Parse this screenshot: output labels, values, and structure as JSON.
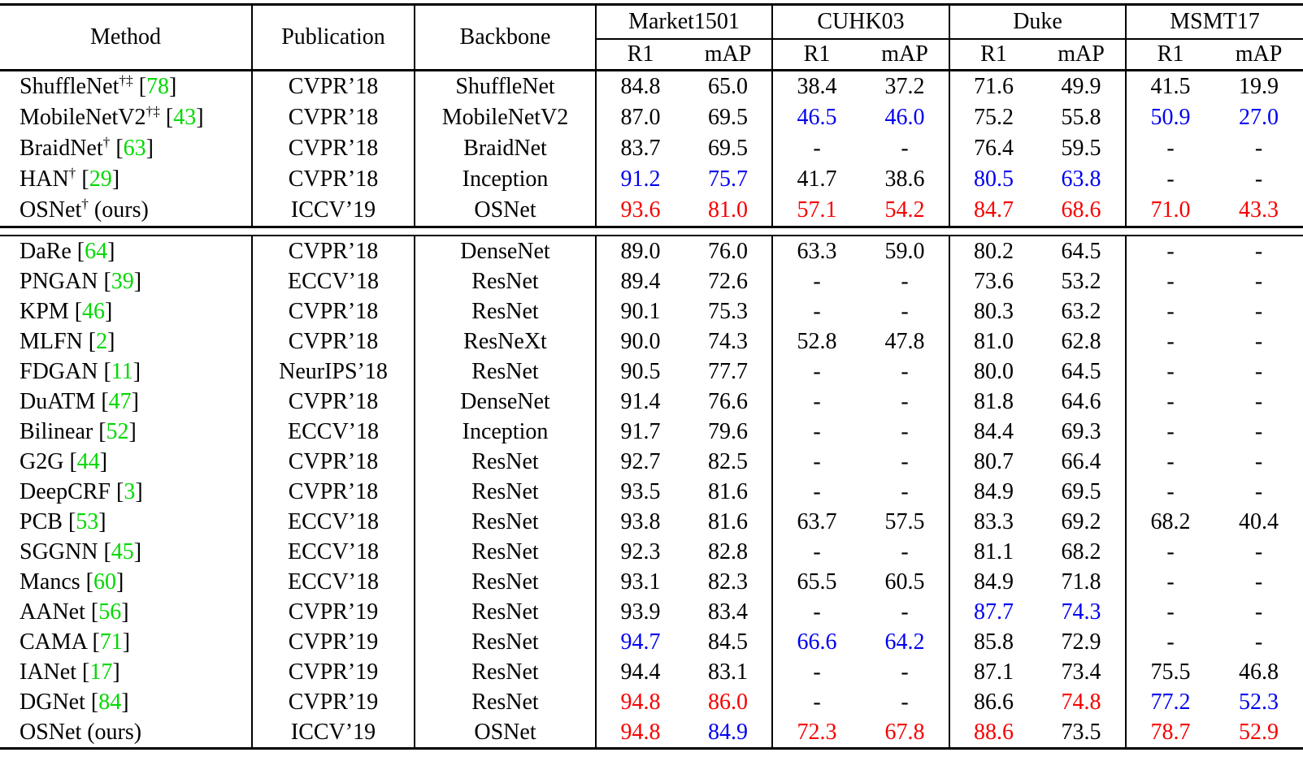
{
  "table": {
    "header": {
      "method": "Method",
      "publication": "Publication",
      "backbone": "Backbone",
      "groups": [
        "Market1501",
        "CUHK03",
        "Duke",
        "MSMT17"
      ],
      "metrics": [
        "R1",
        "mAP"
      ]
    },
    "colors": {
      "k": "#000000",
      "r": "#f70000",
      "b": "#0000f0",
      "cite_green": "#00d900"
    },
    "sections": [
      {
        "rows": [
          {
            "method": "ShuffleNet",
            "sup": "†‡",
            "ref": "78",
            "note": "",
            "publication": "CVPR’18",
            "backbone": "ShuffleNet",
            "values": [
              [
                "84.8",
                "k"
              ],
              [
                "65.0",
                "k"
              ],
              [
                "38.4",
                "k"
              ],
              [
                "37.2",
                "k"
              ],
              [
                "71.6",
                "k"
              ],
              [
                "49.9",
                "k"
              ],
              [
                "41.5",
                "k"
              ],
              [
                "19.9",
                "k"
              ]
            ]
          },
          {
            "method": "MobileNetV2",
            "sup": "†‡",
            "ref": "43",
            "note": "",
            "publication": "CVPR’18",
            "backbone": "MobileNetV2",
            "values": [
              [
                "87.0",
                "k"
              ],
              [
                "69.5",
                "k"
              ],
              [
                "46.5",
                "b"
              ],
              [
                "46.0",
                "b"
              ],
              [
                "75.2",
                "k"
              ],
              [
                "55.8",
                "k"
              ],
              [
                "50.9",
                "b"
              ],
              [
                "27.0",
                "b"
              ]
            ]
          },
          {
            "method": "BraidNet",
            "sup": "†",
            "ref": "63",
            "note": "",
            "publication": "CVPR’18",
            "backbone": "BraidNet",
            "values": [
              [
                "83.7",
                "k"
              ],
              [
                "69.5",
                "k"
              ],
              [
                "-",
                "k"
              ],
              [
                "-",
                "k"
              ],
              [
                "76.4",
                "k"
              ],
              [
                "59.5",
                "k"
              ],
              [
                "-",
                "k"
              ],
              [
                "-",
                "k"
              ]
            ]
          },
          {
            "method": "HAN",
            "sup": "†",
            "ref": "29",
            "note": "",
            "publication": "CVPR’18",
            "backbone": "Inception",
            "values": [
              [
                "91.2",
                "b"
              ],
              [
                "75.7",
                "b"
              ],
              [
                "41.7",
                "k"
              ],
              [
                "38.6",
                "k"
              ],
              [
                "80.5",
                "b"
              ],
              [
                "63.8",
                "b"
              ],
              [
                "-",
                "k"
              ],
              [
                "-",
                "k"
              ]
            ]
          },
          {
            "method": "OSNet",
            "sup": "†",
            "ref": "",
            "note": "(ours)",
            "publication": "ICCV’19",
            "backbone": "OSNet",
            "values": [
              [
                "93.6",
                "r"
              ],
              [
                "81.0",
                "r"
              ],
              [
                "57.1",
                "r"
              ],
              [
                "54.2",
                "r"
              ],
              [
                "84.7",
                "r"
              ],
              [
                "68.6",
                "r"
              ],
              [
                "71.0",
                "r"
              ],
              [
                "43.3",
                "r"
              ]
            ]
          }
        ]
      },
      {
        "rows": [
          {
            "method": "DaRe",
            "sup": "",
            "ref": "64",
            "note": "",
            "publication": "CVPR’18",
            "backbone": "DenseNet",
            "values": [
              [
                "89.0",
                "k"
              ],
              [
                "76.0",
                "k"
              ],
              [
                "63.3",
                "k"
              ],
              [
                "59.0",
                "k"
              ],
              [
                "80.2",
                "k"
              ],
              [
                "64.5",
                "k"
              ],
              [
                "-",
                "k"
              ],
              [
                "-",
                "k"
              ]
            ]
          },
          {
            "method": "PNGAN",
            "sup": "",
            "ref": "39",
            "note": "",
            "publication": "ECCV’18",
            "backbone": "ResNet",
            "values": [
              [
                "89.4",
                "k"
              ],
              [
                "72.6",
                "k"
              ],
              [
                "-",
                "k"
              ],
              [
                "-",
                "k"
              ],
              [
                "73.6",
                "k"
              ],
              [
                "53.2",
                "k"
              ],
              [
                "-",
                "k"
              ],
              [
                "-",
                "k"
              ]
            ]
          },
          {
            "method": "KPM",
            "sup": "",
            "ref": "46",
            "note": "",
            "publication": "CVPR’18",
            "backbone": "ResNet",
            "values": [
              [
                "90.1",
                "k"
              ],
              [
                "75.3",
                "k"
              ],
              [
                "-",
                "k"
              ],
              [
                "-",
                "k"
              ],
              [
                "80.3",
                "k"
              ],
              [
                "63.2",
                "k"
              ],
              [
                "-",
                "k"
              ],
              [
                "-",
                "k"
              ]
            ]
          },
          {
            "method": "MLFN",
            "sup": "",
            "ref": "2",
            "note": "",
            "publication": "CVPR’18",
            "backbone": "ResNeXt",
            "values": [
              [
                "90.0",
                "k"
              ],
              [
                "74.3",
                "k"
              ],
              [
                "52.8",
                "k"
              ],
              [
                "47.8",
                "k"
              ],
              [
                "81.0",
                "k"
              ],
              [
                "62.8",
                "k"
              ],
              [
                "-",
                "k"
              ],
              [
                "-",
                "k"
              ]
            ]
          },
          {
            "method": "FDGAN",
            "sup": "",
            "ref": "11",
            "note": "",
            "publication": "NeurIPS’18",
            "backbone": "ResNet",
            "values": [
              [
                "90.5",
                "k"
              ],
              [
                "77.7",
                "k"
              ],
              [
                "-",
                "k"
              ],
              [
                "-",
                "k"
              ],
              [
                "80.0",
                "k"
              ],
              [
                "64.5",
                "k"
              ],
              [
                "-",
                "k"
              ],
              [
                "-",
                "k"
              ]
            ]
          },
          {
            "method": "DuATM",
            "sup": "",
            "ref": "47",
            "note": "",
            "publication": "CVPR’18",
            "backbone": "DenseNet",
            "values": [
              [
                "91.4",
                "k"
              ],
              [
                "76.6",
                "k"
              ],
              [
                "-",
                "k"
              ],
              [
                "-",
                "k"
              ],
              [
                "81.8",
                "k"
              ],
              [
                "64.6",
                "k"
              ],
              [
                "-",
                "k"
              ],
              [
                "-",
                "k"
              ]
            ]
          },
          {
            "method": "Bilinear",
            "sup": "",
            "ref": "52",
            "note": "",
            "publication": "ECCV’18",
            "backbone": "Inception",
            "values": [
              [
                "91.7",
                "k"
              ],
              [
                "79.6",
                "k"
              ],
              [
                "-",
                "k"
              ],
              [
                "-",
                "k"
              ],
              [
                "84.4",
                "k"
              ],
              [
                "69.3",
                "k"
              ],
              [
                "-",
                "k"
              ],
              [
                "-",
                "k"
              ]
            ]
          },
          {
            "method": "G2G",
            "sup": "",
            "ref": "44",
            "note": "",
            "publication": "CVPR’18",
            "backbone": "ResNet",
            "values": [
              [
                "92.7",
                "k"
              ],
              [
                "82.5",
                "k"
              ],
              [
                "-",
                "k"
              ],
              [
                "-",
                "k"
              ],
              [
                "80.7",
                "k"
              ],
              [
                "66.4",
                "k"
              ],
              [
                "-",
                "k"
              ],
              [
                "-",
                "k"
              ]
            ]
          },
          {
            "method": "DeepCRF",
            "sup": "",
            "ref": "3",
            "note": "",
            "publication": "CVPR’18",
            "backbone": "ResNet",
            "values": [
              [
                "93.5",
                "k"
              ],
              [
                "81.6",
                "k"
              ],
              [
                "-",
                "k"
              ],
              [
                "-",
                "k"
              ],
              [
                "84.9",
                "k"
              ],
              [
                "69.5",
                "k"
              ],
              [
                "-",
                "k"
              ],
              [
                "-",
                "k"
              ]
            ]
          },
          {
            "method": "PCB",
            "sup": "",
            "ref": "53",
            "note": "",
            "publication": "ECCV’18",
            "backbone": "ResNet",
            "values": [
              [
                "93.8",
                "k"
              ],
              [
                "81.6",
                "k"
              ],
              [
                "63.7",
                "k"
              ],
              [
                "57.5",
                "k"
              ],
              [
                "83.3",
                "k"
              ],
              [
                "69.2",
                "k"
              ],
              [
                "68.2",
                "k"
              ],
              [
                "40.4",
                "k"
              ]
            ]
          },
          {
            "method": "SGGNN",
            "sup": "",
            "ref": "45",
            "note": "",
            "publication": "ECCV’18",
            "backbone": "ResNet",
            "values": [
              [
                "92.3",
                "k"
              ],
              [
                "82.8",
                "k"
              ],
              [
                "-",
                "k"
              ],
              [
                "-",
                "k"
              ],
              [
                "81.1",
                "k"
              ],
              [
                "68.2",
                "k"
              ],
              [
                "-",
                "k"
              ],
              [
                "-",
                "k"
              ]
            ]
          },
          {
            "method": "Mancs",
            "sup": "",
            "ref": "60",
            "note": "",
            "publication": "ECCV’18",
            "backbone": "ResNet",
            "values": [
              [
                "93.1",
                "k"
              ],
              [
                "82.3",
                "k"
              ],
              [
                "65.5",
                "k"
              ],
              [
                "60.5",
                "k"
              ],
              [
                "84.9",
                "k"
              ],
              [
                "71.8",
                "k"
              ],
              [
                "-",
                "k"
              ],
              [
                "-",
                "k"
              ]
            ]
          },
          {
            "method": "AANet",
            "sup": "",
            "ref": "56",
            "note": "",
            "publication": "CVPR’19",
            "backbone": "ResNet",
            "values": [
              [
                "93.9",
                "k"
              ],
              [
                "83.4",
                "k"
              ],
              [
                "-",
                "k"
              ],
              [
                "-",
                "k"
              ],
              [
                "87.7",
                "b"
              ],
              [
                "74.3",
                "b"
              ],
              [
                "-",
                "k"
              ],
              [
                "-",
                "k"
              ]
            ]
          },
          {
            "method": "CAMA",
            "sup": "",
            "ref": "71",
            "note": "",
            "publication": "CVPR’19",
            "backbone": "ResNet",
            "values": [
              [
                "94.7",
                "b"
              ],
              [
                "84.5",
                "k"
              ],
              [
                "66.6",
                "b"
              ],
              [
                "64.2",
                "b"
              ],
              [
                "85.8",
                "k"
              ],
              [
                "72.9",
                "k"
              ],
              [
                "-",
                "k"
              ],
              [
                "-",
                "k"
              ]
            ]
          },
          {
            "method": "IANet",
            "sup": "",
            "ref": "17",
            "note": "",
            "publication": "CVPR’19",
            "backbone": "ResNet",
            "values": [
              [
                "94.4",
                "k"
              ],
              [
                "83.1",
                "k"
              ],
              [
                "-",
                "k"
              ],
              [
                "-",
                "k"
              ],
              [
                "87.1",
                "k"
              ],
              [
                "73.4",
                "k"
              ],
              [
                "75.5",
                "k"
              ],
              [
                "46.8",
                "k"
              ]
            ]
          },
          {
            "method": "DGNet",
            "sup": "",
            "ref": "84",
            "note": "",
            "publication": "CVPR’19",
            "backbone": "ResNet",
            "values": [
              [
                "94.8",
                "r"
              ],
              [
                "86.0",
                "r"
              ],
              [
                "-",
                "k"
              ],
              [
                "-",
                "k"
              ],
              [
                "86.6",
                "k"
              ],
              [
                "74.8",
                "r"
              ],
              [
                "77.2",
                "b"
              ],
              [
                "52.3",
                "b"
              ]
            ]
          },
          {
            "method": "OSNet",
            "sup": "",
            "ref": "",
            "note": "(ours)",
            "publication": "ICCV’19",
            "backbone": "OSNet",
            "values": [
              [
                "94.8",
                "r"
              ],
              [
                "84.9",
                "b"
              ],
              [
                "72.3",
                "r"
              ],
              [
                "67.8",
                "r"
              ],
              [
                "88.6",
                "r"
              ],
              [
                "73.5",
                "k"
              ],
              [
                "78.7",
                "r"
              ],
              [
                "52.9",
                "r"
              ]
            ]
          }
        ]
      }
    ]
  }
}
